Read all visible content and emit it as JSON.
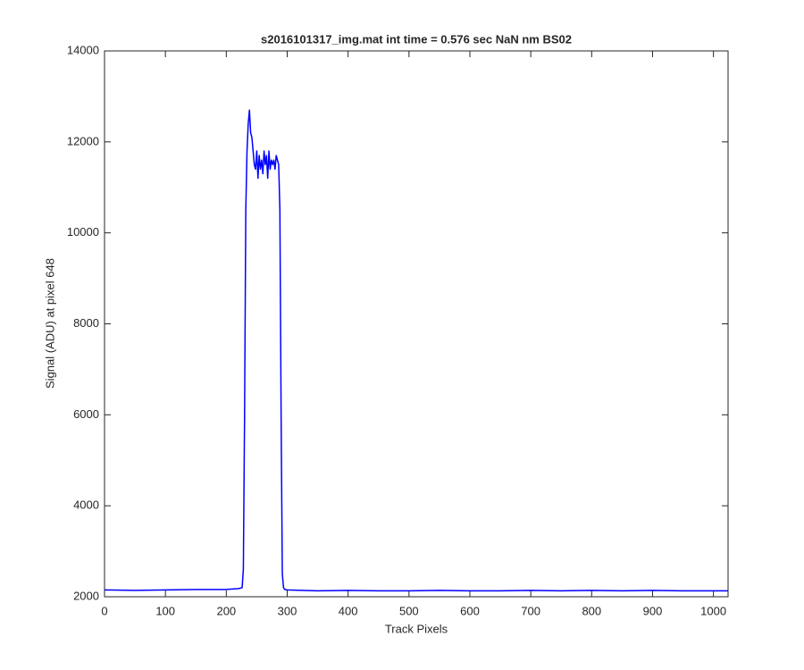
{
  "chart_data": {
    "type": "line",
    "title": "s2016101317_img.mat int time = 0.576 sec  NaN nm BS02",
    "x_label": "Track Pixels",
    "y_label": "Signal (ADU) at pixel 648",
    "x": [
      0,
      50,
      100,
      150,
      200,
      220,
      226,
      228,
      230,
      232,
      234,
      236,
      238,
      240,
      242,
      244,
      246,
      248,
      250,
      252,
      254,
      256,
      258,
      260,
      262,
      264,
      266,
      268,
      270,
      272,
      274,
      276,
      278,
      280,
      282,
      284,
      286,
      288,
      290,
      292,
      294,
      296,
      300,
      350,
      400,
      450,
      500,
      550,
      600,
      650,
      700,
      750,
      800,
      850,
      900,
      950,
      1000,
      1024
    ],
    "series": [
      {
        "color": "#0000ff",
        "values": [
          2150,
          2140,
          2150,
          2160,
          2160,
          2180,
          2200,
          2600,
          6000,
          10500,
          11800,
          12400,
          12700,
          12200,
          12100,
          11800,
          11500,
          11400,
          11800,
          11200,
          11700,
          11400,
          11600,
          11300,
          11800,
          11500,
          11700,
          11200,
          11800,
          11400,
          11600,
          11500,
          11600,
          11400,
          11700,
          11600,
          11500,
          10500,
          6000,
          2500,
          2200,
          2160,
          2150,
          2130,
          2140,
          2130,
          2130,
          2140,
          2130,
          2130,
          2140,
          2130,
          2140,
          2130,
          2140,
          2130,
          2130,
          2130
        ]
      }
    ],
    "xlim": [
      0,
      1024
    ],
    "ylim": [
      2000,
      14000
    ],
    "xticks": [
      0,
      100,
      200,
      300,
      400,
      500,
      600,
      700,
      800,
      900,
      1000
    ],
    "yticks": [
      2000,
      4000,
      6000,
      8000,
      10000,
      12000,
      14000
    ],
    "grid": false
  }
}
